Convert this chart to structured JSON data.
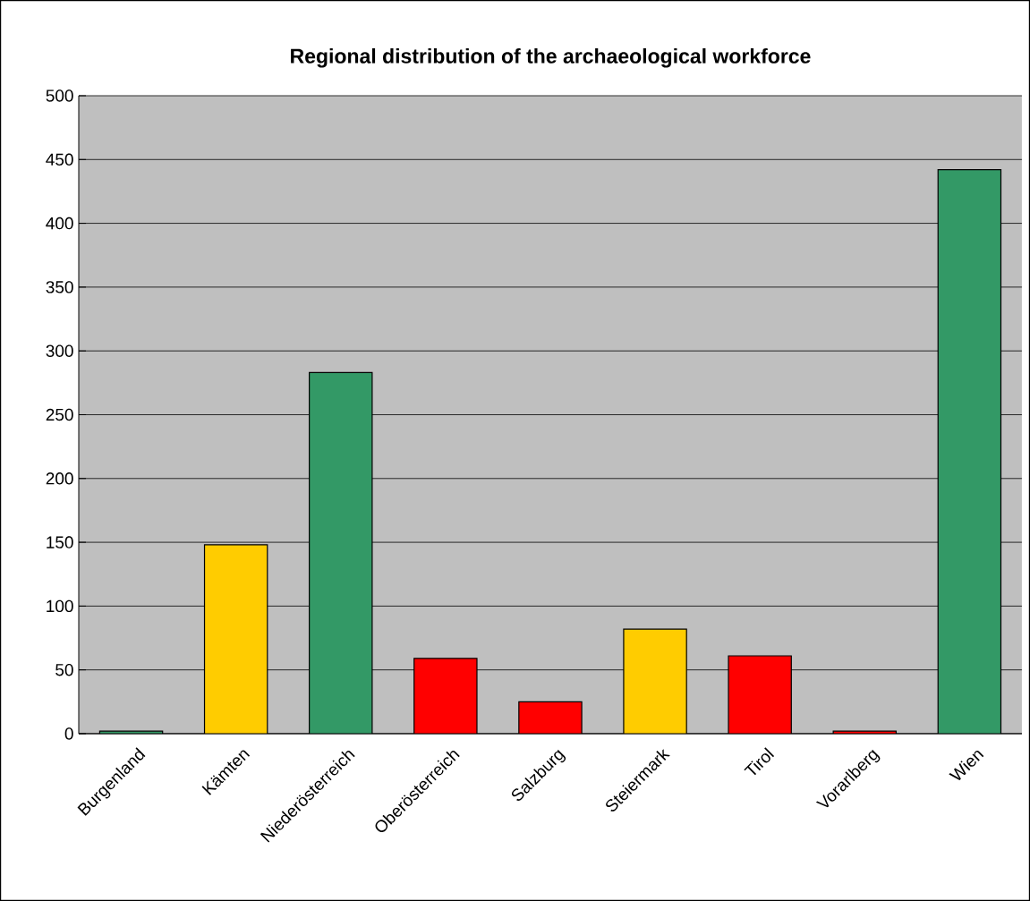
{
  "chart_data": {
    "type": "bar",
    "title": "Regional distribution of the archaeological workforce",
    "categories": [
      "Burgenland",
      "Kämten",
      "Niederösterreich",
      "Oberösterreich",
      "Salzburg",
      "Steiermark",
      "Tirol",
      "Vorarlberg",
      "Wien"
    ],
    "values": [
      2,
      148,
      283,
      59,
      25,
      82,
      61,
      2,
      442
    ],
    "colors": [
      "#339966",
      "#ffcc00",
      "#339966",
      "#ff0000",
      "#ff0000",
      "#ffcc00",
      "#ff0000",
      "#ff0000",
      "#339966"
    ],
    "ylim": [
      0,
      500
    ],
    "yticks": [
      0,
      50,
      100,
      150,
      200,
      250,
      300,
      350,
      400,
      450,
      500
    ],
    "grid": "y"
  }
}
